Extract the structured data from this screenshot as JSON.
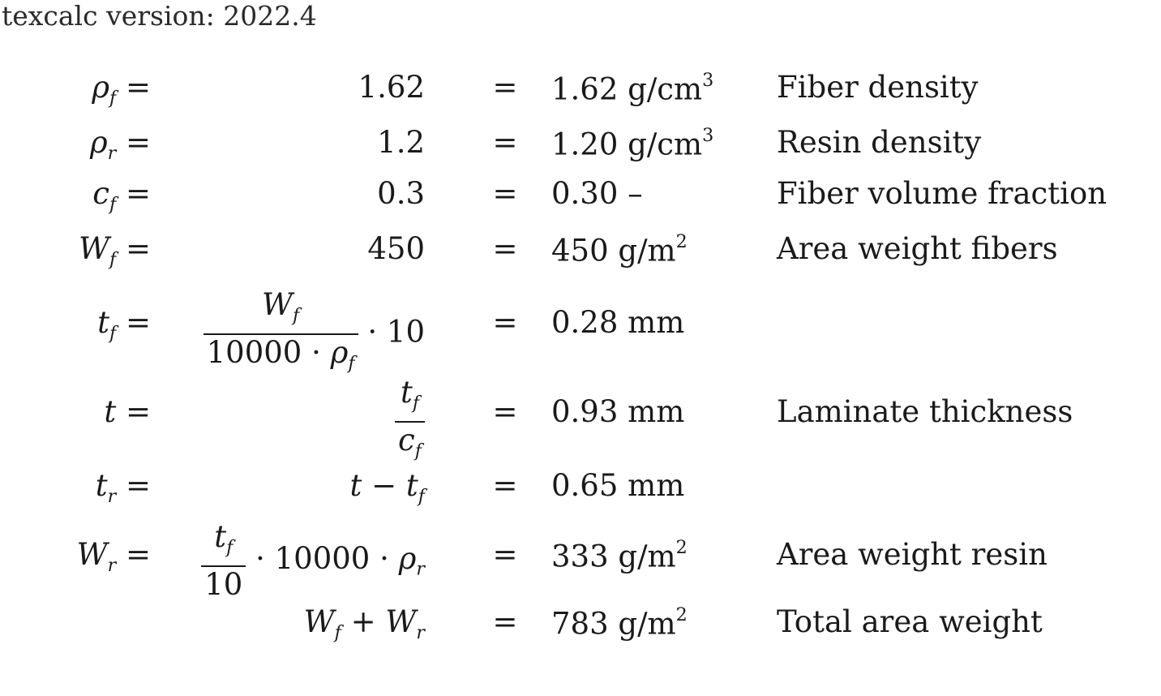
{
  "header": {
    "version_text": "texcalc version: 2022.4"
  },
  "rows": [
    {
      "lhs_symbol": "ρ",
      "lhs_sub": "f",
      "lhs_eq": "=",
      "expr": "1.62",
      "eq": "=",
      "result_value": "1.62",
      "result_unit": "g/cm",
      "result_unit_sup": "3",
      "description": "Fiber density"
    },
    {
      "lhs_symbol": "ρ",
      "lhs_sub": "r",
      "lhs_eq": "=",
      "expr": "1.2",
      "eq": "=",
      "result_value": "1.20",
      "result_unit": "g/cm",
      "result_unit_sup": "3",
      "description": "Resin density"
    },
    {
      "lhs_symbol": "c",
      "lhs_sub": "f",
      "lhs_eq": "=",
      "expr": "0.3",
      "eq": "=",
      "result_value": "0.30",
      "result_unit": "–",
      "description": "Fiber volume fraction"
    },
    {
      "lhs_symbol": "W",
      "lhs_sub": "f",
      "lhs_eq": "=",
      "expr": "450",
      "eq": "=",
      "result_value": "450",
      "result_unit": "g/m",
      "result_unit_sup": "2",
      "description": "Area weight fibers"
    },
    {
      "lhs_symbol": "t",
      "lhs_sub": "f",
      "lhs_eq": "=",
      "frac_num_symbol": "W",
      "frac_num_sub": "f",
      "frac_den_prefix": "10000 · ",
      "frac_den_symbol": "ρ",
      "frac_den_sub": "f",
      "expr_suffix": " · 10",
      "eq": "=",
      "result_value": "0.28",
      "result_unit": "mm"
    },
    {
      "lhs_symbol": "t",
      "lhs_eq": "=",
      "frac_num_symbol": "t",
      "frac_num_sub": "f",
      "frac_den_symbol": "c",
      "frac_den_sub": "f",
      "eq": "=",
      "result_value": "0.93",
      "result_unit": "mm",
      "description": "Laminate thickness"
    },
    {
      "lhs_symbol": "t",
      "lhs_sub": "r",
      "lhs_eq": "=",
      "expr_symbol_a": "t",
      "expr_op": " − ",
      "expr_symbol_b": "t",
      "expr_sub_b": "f",
      "eq": "=",
      "result_value": "0.65",
      "result_unit": "mm"
    },
    {
      "lhs_symbol": "W",
      "lhs_sub": "r",
      "lhs_eq": "=",
      "frac_num_symbol": "t",
      "frac_num_sub": "f",
      "frac_den_text": "10",
      "expr_suffix": " · 10000 · ",
      "expr_suffix_symbol": "ρ",
      "expr_suffix_sub": "r",
      "eq": "=",
      "result_value": "333",
      "result_unit": "g/m",
      "result_unit_sup": "2",
      "description": "Area weight resin"
    },
    {
      "expr_symbol_a": "W",
      "expr_sub_a": "f",
      "expr_op": " + ",
      "expr_symbol_b": "W",
      "expr_sub_b": "r",
      "eq": "=",
      "result_value": "783",
      "result_unit": "g/m",
      "result_unit_sup": "2",
      "description": "Total area weight"
    }
  ]
}
